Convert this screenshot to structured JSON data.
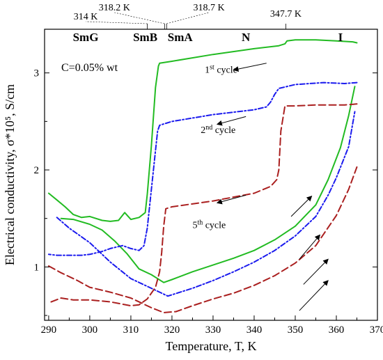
{
  "chart_data": {
    "type": "line",
    "xlabel": "Temperature, T, K",
    "ylabel": "Electrical conductivity, σ*10⁵, S/cm",
    "xlim": [
      289,
      370
    ],
    "ylim": [
      0.45,
      3.45
    ],
    "x_ticks": [
      290,
      300,
      310,
      320,
      330,
      340,
      350,
      360,
      370
    ],
    "y_ticks": [
      1,
      2,
      3
    ],
    "grid": false,
    "concentration_label": "C=0.05% wt",
    "phase_labels": [
      {
        "text": "SmG",
        "x": 299
      },
      {
        "text": "SmB",
        "x": 313.5
      },
      {
        "text": "SmA",
        "x": 322
      },
      {
        "text": "N",
        "x": 338
      },
      {
        "text": "I",
        "x": 361
      }
    ],
    "transition_temps": [
      {
        "text": "314 K",
        "at": 314,
        "label_x": 299
      },
      {
        "text": "318.2 K",
        "at": 318.2,
        "label_x": 306
      },
      {
        "text": "318.7 K",
        "at": 318.7,
        "label_x": 329
      },
      {
        "text": "347.7 K",
        "at": 347.7,
        "label_x": 347.7
      }
    ],
    "series": [
      {
        "name": "1st cycle",
        "color": "#22bb22",
        "dash": "solid",
        "cooling": [
          [
            365,
            3.31
          ],
          [
            364,
            3.32
          ],
          [
            360,
            3.33
          ],
          [
            355,
            3.34
          ],
          [
            350,
            3.34
          ],
          [
            348,
            3.33
          ],
          [
            347.5,
            3.3
          ],
          [
            346,
            3.28
          ],
          [
            340,
            3.25
          ],
          [
            330,
            3.19
          ],
          [
            320,
            3.12
          ],
          [
            317,
            3.1
          ],
          [
            316.7,
            3.07
          ],
          [
            316,
            2.85
          ],
          [
            315,
            2.25
          ],
          [
            314,
            1.75
          ],
          [
            313.5,
            1.56
          ],
          [
            312,
            1.51
          ],
          [
            310,
            1.49
          ],
          [
            308.5,
            1.56
          ],
          [
            307,
            1.48
          ],
          [
            305,
            1.47
          ],
          [
            303,
            1.48
          ],
          [
            300,
            1.52
          ],
          [
            298,
            1.51
          ],
          [
            296,
            1.54
          ],
          [
            294,
            1.62
          ],
          [
            292,
            1.69
          ],
          [
            290,
            1.76
          ]
        ],
        "heating": [
          [
            293,
            1.5
          ],
          [
            296,
            1.49
          ],
          [
            300,
            1.44
          ],
          [
            303,
            1.38
          ],
          [
            306,
            1.27
          ],
          [
            309,
            1.14
          ],
          [
            312,
            0.98
          ],
          [
            315,
            0.92
          ],
          [
            318,
            0.84
          ],
          [
            320,
            0.87
          ],
          [
            325,
            0.95
          ],
          [
            330,
            1.02
          ],
          [
            335,
            1.09
          ],
          [
            340,
            1.17
          ],
          [
            345,
            1.28
          ],
          [
            350,
            1.42
          ],
          [
            355,
            1.64
          ],
          [
            358,
            1.9
          ],
          [
            361,
            2.23
          ],
          [
            363,
            2.56
          ],
          [
            364.5,
            2.86
          ]
        ]
      },
      {
        "name": "2nd cycle",
        "color": "#1a1aee",
        "dash": "dashdot",
        "cooling": [
          [
            365,
            2.9
          ],
          [
            362,
            2.89
          ],
          [
            357,
            2.9
          ],
          [
            350,
            2.88
          ],
          [
            346,
            2.84
          ],
          [
            345,
            2.78
          ],
          [
            344,
            2.7
          ],
          [
            343,
            2.65
          ],
          [
            340,
            2.62
          ],
          [
            330,
            2.57
          ],
          [
            320,
            2.5
          ],
          [
            317,
            2.46
          ],
          [
            316.5,
            2.4
          ],
          [
            316,
            2.2
          ],
          [
            315,
            1.8
          ],
          [
            314,
            1.4
          ],
          [
            313.2,
            1.22
          ],
          [
            312,
            1.17
          ],
          [
            310,
            1.19
          ],
          [
            308,
            1.22
          ],
          [
            305,
            1.19
          ],
          [
            303,
            1.16
          ],
          [
            300,
            1.13
          ],
          [
            298,
            1.12
          ],
          [
            295,
            1.12
          ],
          [
            292,
            1.12
          ],
          [
            290,
            1.13
          ]
        ],
        "heating": [
          [
            292,
            1.51
          ],
          [
            295,
            1.4
          ],
          [
            300,
            1.25
          ],
          [
            305,
            1.05
          ],
          [
            310,
            0.88
          ],
          [
            315,
            0.78
          ],
          [
            319,
            0.7
          ],
          [
            325,
            0.78
          ],
          [
            330,
            0.86
          ],
          [
            335,
            0.95
          ],
          [
            340,
            1.05
          ],
          [
            345,
            1.17
          ],
          [
            350,
            1.32
          ],
          [
            355,
            1.52
          ],
          [
            358,
            1.74
          ],
          [
            360,
            1.92
          ],
          [
            363,
            2.24
          ],
          [
            364.5,
            2.6
          ]
        ]
      },
      {
        "name": "5th cycle",
        "color": "#aa1f1f",
        "dash": "dashed",
        "cooling": [
          [
            365,
            2.68
          ],
          [
            362,
            2.67
          ],
          [
            355,
            2.67
          ],
          [
            350,
            2.66
          ],
          [
            347.5,
            2.66
          ],
          [
            346.5,
            2.4
          ],
          [
            346,
            2.0
          ],
          [
            345.5,
            1.9
          ],
          [
            344,
            1.83
          ],
          [
            340,
            1.76
          ],
          [
            330,
            1.68
          ],
          [
            320,
            1.62
          ],
          [
            318.5,
            1.6
          ],
          [
            318,
            1.42
          ],
          [
            317.5,
            1.15
          ],
          [
            317,
            0.95
          ],
          [
            316,
            0.79
          ],
          [
            314,
            0.67
          ],
          [
            312,
            0.61
          ],
          [
            310,
            0.6
          ],
          [
            305,
            0.64
          ],
          [
            300,
            0.66
          ],
          [
            296,
            0.66
          ],
          [
            293,
            0.68
          ],
          [
            290,
            0.63
          ]
        ],
        "heating": [
          [
            290,
            1.01
          ],
          [
            293,
            0.94
          ],
          [
            297,
            0.86
          ],
          [
            300,
            0.79
          ],
          [
            305,
            0.74
          ],
          [
            310,
            0.68
          ],
          [
            315,
            0.58
          ],
          [
            318,
            0.53
          ],
          [
            321,
            0.54
          ],
          [
            325,
            0.6
          ],
          [
            330,
            0.67
          ],
          [
            335,
            0.73
          ],
          [
            340,
            0.81
          ],
          [
            345,
            0.91
          ],
          [
            350,
            1.04
          ],
          [
            355,
            1.22
          ],
          [
            360,
            1.53
          ],
          [
            363,
            1.8
          ],
          [
            365,
            2.03
          ]
        ]
      }
    ],
    "annotations": [
      {
        "series": "1st cycle",
        "main": "1",
        "sup": "st",
        "rest": " cycle",
        "x": 328,
        "y": 3.0
      },
      {
        "series": "2nd cycle",
        "main": "2",
        "sup": "nd",
        "rest": " cycle",
        "x": 327,
        "y": 2.38
      },
      {
        "series": "5th cycle",
        "main": "5",
        "sup": "th",
        "rest": " cycle",
        "x": 325,
        "y": 1.4
      }
    ],
    "arrows": [
      {
        "from": [
          343,
          3.1
        ],
        "to": [
          335,
          3.03
        ]
      },
      {
        "from": [
          338,
          2.55
        ],
        "to": [
          331,
          2.47
        ]
      },
      {
        "from": [
          338,
          1.74
        ],
        "to": [
          331,
          1.66
        ]
      },
      {
        "from": [
          349,
          1.52
        ],
        "to": [
          354,
          1.73
        ]
      },
      {
        "from": [
          351,
          1.08
        ],
        "to": [
          356,
          1.33
        ]
      },
      {
        "from": [
          352,
          0.82
        ],
        "to": [
          358,
          1.08
        ]
      },
      {
        "from": [
          351,
          0.55
        ],
        "to": [
          358,
          0.86
        ]
      }
    ]
  }
}
